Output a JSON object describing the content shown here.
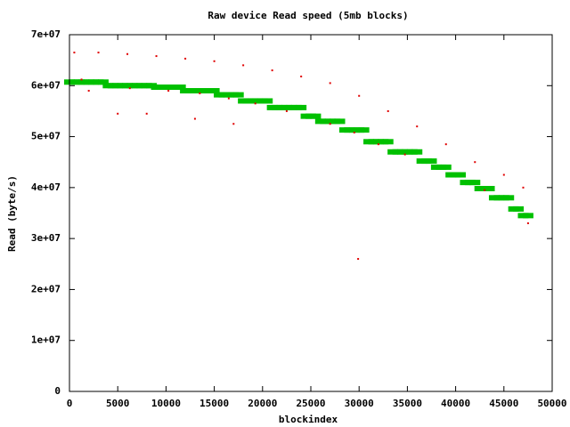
{
  "chart_data": {
    "type": "scatter",
    "title": "Raw device Read speed (5mb blocks)",
    "x_label": "blockindex",
    "y_label": "Read (byte/s)",
    "xlim": [
      0,
      50000
    ],
    "xticks": [
      0,
      5000,
      10000,
      15000,
      20000,
      25000,
      30000,
      35000,
      40000,
      45000,
      50000
    ],
    "ylim": [
      0,
      70000000
    ],
    "yticks": [
      0,
      {
        "value": 10000000,
        "label": "1e+07"
      },
      {
        "value": 20000000,
        "label": "2e+07"
      },
      {
        "value": 30000000,
        "label": "3e+07"
      },
      {
        "value": 40000000,
        "label": "4e+07"
      },
      {
        "value": 50000000,
        "label": "5e+07"
      },
      {
        "value": 60000000,
        "label": "6e+07"
      },
      {
        "value": 70000000,
        "label": "7e+07"
      }
    ],
    "series": [
      {
        "color": "#00c000",
        "x": [
          0,
          500,
          1000,
          1500,
          2000,
          2500,
          3000,
          3500,
          4000,
          4500,
          5000,
          5500,
          6000,
          6500,
          7000,
          7500,
          8000,
          8500,
          9000,
          9500,
          10000,
          10500,
          11000,
          11500,
          12000,
          12500,
          13000,
          13500,
          14000,
          14500,
          15000,
          15500,
          16000,
          16500,
          17000,
          17500,
          18000,
          18500,
          19000,
          19500,
          20000,
          20500,
          21000,
          21500,
          22000,
          22500,
          23000,
          23500,
          24000,
          24500,
          25000,
          25500,
          26000,
          26500,
          27000,
          27500,
          28000,
          28500,
          29000,
          29500,
          30000,
          30500,
          31000,
          31500,
          32000,
          32500,
          33000,
          33500,
          34000,
          34500,
          35000,
          35500,
          36000,
          36500,
          37000,
          37500,
          38000,
          38500,
          39000,
          39500,
          40000,
          40500,
          41000,
          41500,
          42000,
          42500,
          43000,
          43500,
          44000,
          44500,
          45000,
          45500,
          46000,
          46500,
          47000,
          47500
        ],
        "values": [
          60700000,
          60700000,
          60700000,
          60700000,
          60700000,
          60700000,
          60700000,
          60700000,
          60000000,
          60000000,
          60000000,
          60000000,
          60000000,
          60000000,
          60000000,
          60000000,
          60000000,
          60000000,
          59700000,
          59700000,
          59700000,
          59700000,
          59700000,
          59700000,
          59000000,
          59000000,
          59000000,
          59000000,
          59000000,
          59000000,
          59000000,
          58200000,
          58200000,
          58200000,
          58200000,
          58200000,
          57000000,
          57000000,
          57000000,
          57000000,
          57000000,
          57000000,
          55700000,
          55700000,
          55700000,
          55700000,
          55700000,
          55700000,
          55700000,
          54000000,
          54000000,
          54000000,
          53000000,
          53000000,
          53000000,
          53000000,
          53000000,
          51300000,
          51300000,
          51300000,
          51300000,
          51300000,
          49000000,
          49000000,
          49000000,
          49000000,
          49000000,
          47000000,
          47000000,
          47000000,
          47000000,
          47000000,
          47000000,
          45200000,
          45200000,
          45200000,
          44000000,
          44000000,
          44000000,
          42500000,
          42500000,
          42500000,
          41000000,
          41000000,
          41000000,
          39800000,
          39800000,
          39800000,
          38000000,
          38000000,
          38000000,
          38000000,
          35800000,
          35800000,
          34500000,
          34500000
        ]
      },
      {
        "color": "#e00000",
        "x": [
          500,
          3000,
          6000,
          9000,
          12000,
          15000,
          18000,
          21000,
          24000,
          27000,
          30000,
          33000,
          36000,
          39000,
          42000,
          45000,
          47000,
          5000,
          8000,
          13000,
          17000,
          29900,
          2000,
          47500,
          1250,
          6250,
          10250,
          13500,
          16500,
          19250,
          22500,
          27000,
          29500,
          32000,
          34750,
          43000
        ],
        "values": [
          66500000,
          66500000,
          66200000,
          65800000,
          65300000,
          64800000,
          64000000,
          63000000,
          61800000,
          60500000,
          58000000,
          55000000,
          52000000,
          48500000,
          45000000,
          42500000,
          40000000,
          54500000,
          54500000,
          53500000,
          52500000,
          26000000,
          59000000,
          33000000,
          61200000,
          59500000,
          59000000,
          58500000,
          57500000,
          56500000,
          55000000,
          52500000,
          50800000,
          48500000,
          46500000,
          39500000
        ]
      }
    ]
  }
}
